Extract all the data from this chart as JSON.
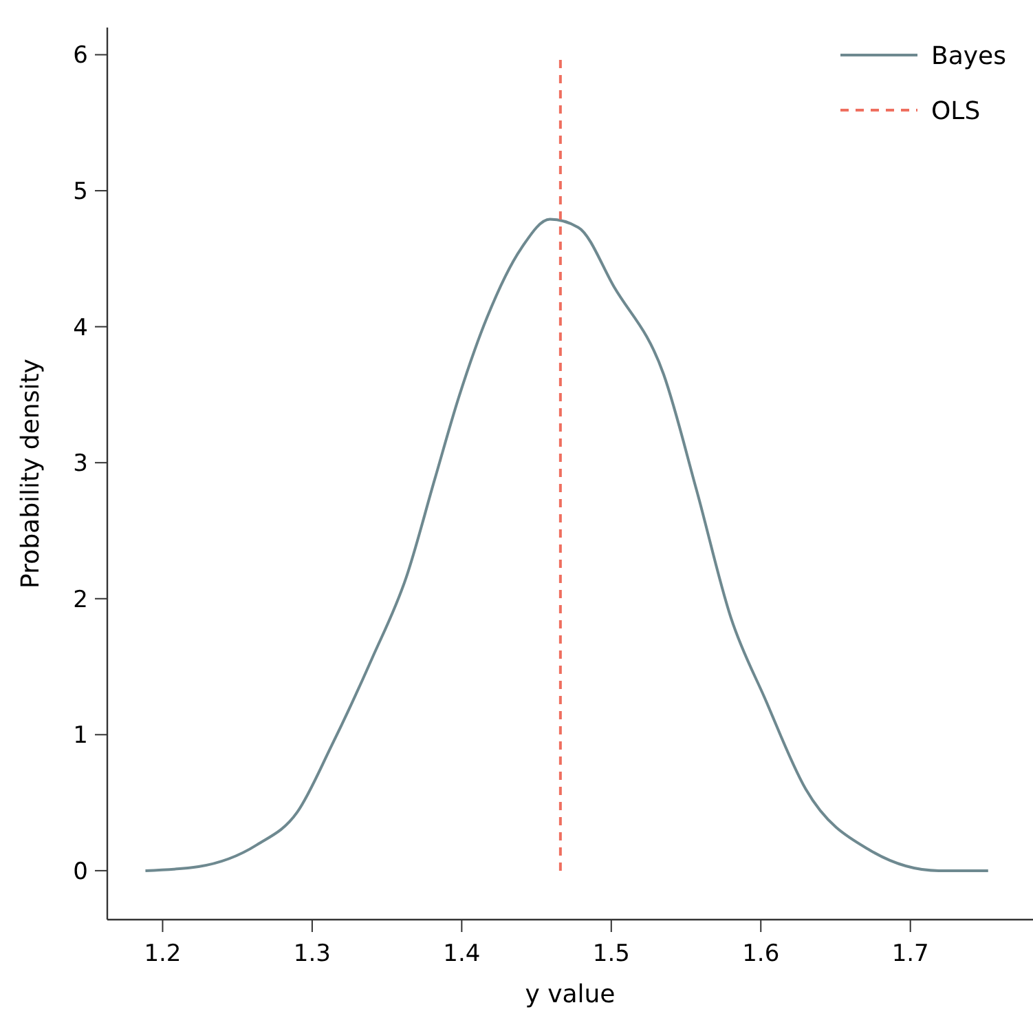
{
  "chart_data": {
    "type": "line",
    "xlabel": "y value",
    "ylabel": "Probability density",
    "xlim": [
      1.163,
      1.782
    ],
    "ylim": [
      -0.36,
      6.2
    ],
    "xticks": [
      1.2,
      1.3,
      1.4,
      1.5,
      1.6,
      1.7
    ],
    "yticks": [
      0,
      1,
      2,
      3,
      4,
      5,
      6
    ],
    "grid": false,
    "legend": "top right",
    "marker": "none",
    "series": [
      {
        "name": "Bayes",
        "color": "#6e8990",
        "line_style": "solid",
        "x": [
          1.1885,
          1.224,
          1.263,
          1.29,
          1.313,
          1.34,
          1.363,
          1.382,
          1.398,
          1.417,
          1.44,
          1.459,
          1.478,
          1.502,
          1.535,
          1.557,
          1.58,
          1.603,
          1.63,
          1.673,
          1.719,
          1.752
        ],
        "values": [
          0,
          0.03,
          0.19,
          0.43,
          0.92,
          1.56,
          2.16,
          2.88,
          3.48,
          4.07,
          4.58,
          4.79,
          4.73,
          4.29,
          3.65,
          2.8,
          1.86,
          1.26,
          0.6,
          0.15,
          0,
          0
        ]
      },
      {
        "name": "OLS",
        "color": "#ef6f5f",
        "line_style": "dashed",
        "x": [
          1.466,
          1.466
        ],
        "values": [
          0,
          6
        ]
      }
    ]
  }
}
